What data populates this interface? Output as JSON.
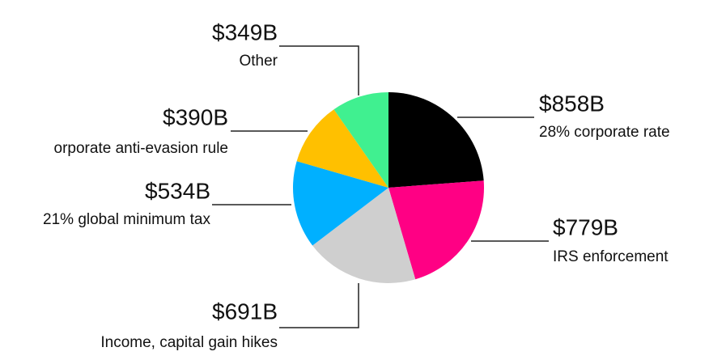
{
  "chart_data": {
    "type": "pie",
    "categories": [
      "28% corporate rate",
      "IRS enforcement",
      "Income, capital gain hikes",
      "21% global minimum tax",
      "orporate anti-evasion rule",
      "Other"
    ],
    "values": [
      858,
      779,
      691,
      534,
      390,
      349
    ],
    "value_labels": [
      "$858B",
      "$779B",
      "$691B",
      "$534B",
      "$390B",
      "$349B"
    ],
    "colors": [
      "#000000",
      "#ff0084",
      "#cfcfcf",
      "#00b0ff",
      "#ffc000",
      "#40f090"
    ]
  }
}
